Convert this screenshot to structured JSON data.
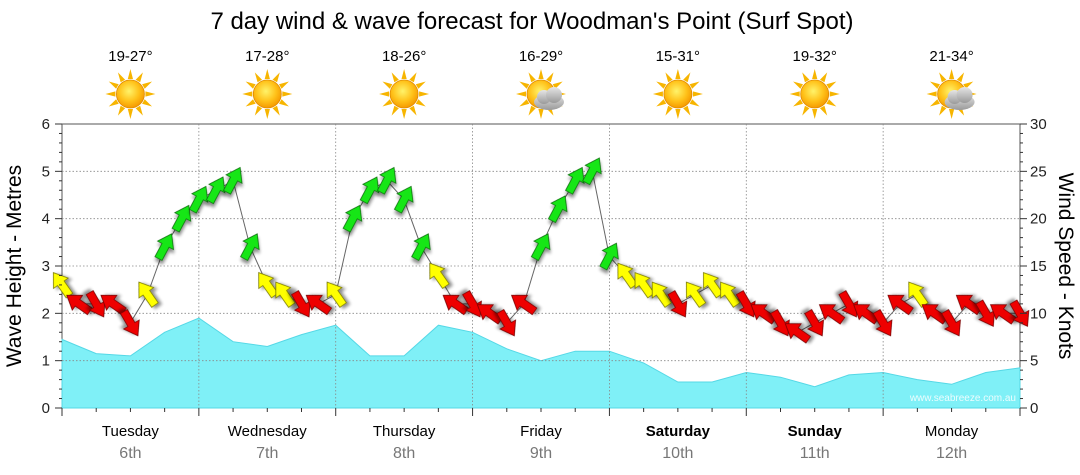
{
  "chart_data": {
    "type": "area",
    "title": "7 day wind & wave forecast for Woodman's Point (Surf Spot)",
    "ylabel_left": "Wave Height - Metres",
    "ylabel_right": "Wind Speed - Knots",
    "ylim_left": [
      0,
      6
    ],
    "ylim_right": [
      0,
      30
    ],
    "yticks_left": [
      "0",
      "1",
      "2",
      "3",
      "4",
      "5",
      "6"
    ],
    "yticks_right": [
      "0",
      "5",
      "10",
      "15",
      "20",
      "25",
      "30"
    ],
    "grid": true,
    "credit": "www.seabreeze.com.au",
    "days": [
      {
        "name": "Tuesday",
        "date": "6th",
        "temp": "19-27°",
        "icon": "sun-icon",
        "weekend": false
      },
      {
        "name": "Wednesday",
        "date": "7th",
        "temp": "17-28°",
        "icon": "sun-icon",
        "weekend": false
      },
      {
        "name": "Thursday",
        "date": "8th",
        "temp": "18-26°",
        "icon": "sun-icon",
        "weekend": false
      },
      {
        "name": "Friday",
        "date": "9th",
        "temp": "16-29°",
        "icon": "partly-cloudy-icon",
        "weekend": false
      },
      {
        "name": "Saturday",
        "date": "10th",
        "temp": "15-31°",
        "icon": "sun-icon",
        "weekend": true
      },
      {
        "name": "Sunday",
        "date": "11th",
        "temp": "19-32°",
        "icon": "sun-icon",
        "weekend": true
      },
      {
        "name": "Monday",
        "date": "12th",
        "temp": "21-34°",
        "icon": "partly-cloudy-icon",
        "weekend": false
      }
    ],
    "wave_series": {
      "name": "Wave Height",
      "unit": "m",
      "hours": [
        0,
        6,
        12,
        18,
        24,
        30,
        36,
        42,
        48,
        54,
        60,
        66,
        72,
        78,
        84,
        90,
        96,
        102,
        108,
        114,
        120,
        126,
        132,
        138,
        144,
        150,
        156,
        162,
        168
      ],
      "values": [
        1.45,
        1.15,
        1.1,
        1.6,
        1.9,
        1.4,
        1.3,
        1.55,
        1.75,
        1.1,
        1.1,
        1.75,
        1.6,
        1.25,
        1.0,
        1.2,
        1.2,
        0.95,
        0.55,
        0.55,
        0.75,
        0.65,
        0.45,
        0.7,
        0.75,
        0.6,
        0.5,
        0.75,
        0.85
      ]
    },
    "wind_series": {
      "name": "Wind Speed",
      "unit": "knots",
      "hours": [
        0,
        3,
        6,
        9,
        12,
        15,
        18,
        21,
        24,
        27,
        30,
        33,
        36,
        39,
        42,
        45,
        48,
        51,
        54,
        57,
        60,
        63,
        66,
        69,
        72,
        75,
        78,
        81,
        84,
        87,
        90,
        93,
        96,
        99,
        102,
        105,
        108,
        111,
        114,
        117,
        120,
        123,
        126,
        129,
        132,
        135,
        138,
        141,
        144,
        147,
        150,
        153,
        156,
        159,
        162,
        165,
        168
      ],
      "values": [
        13,
        11,
        11,
        11,
        9,
        12,
        17,
        20,
        22,
        23,
        24,
        17,
        13,
        12,
        11,
        11,
        12,
        20,
        23,
        24,
        22,
        17,
        14,
        11,
        11,
        10,
        9,
        11,
        17,
        21,
        24,
        25,
        16,
        14,
        13,
        12,
        11,
        12,
        13,
        12,
        11,
        10,
        9,
        8,
        9,
        10,
        11,
        10,
        9,
        11,
        12,
        10,
        9,
        11,
        10,
        10,
        10
      ]
    }
  }
}
